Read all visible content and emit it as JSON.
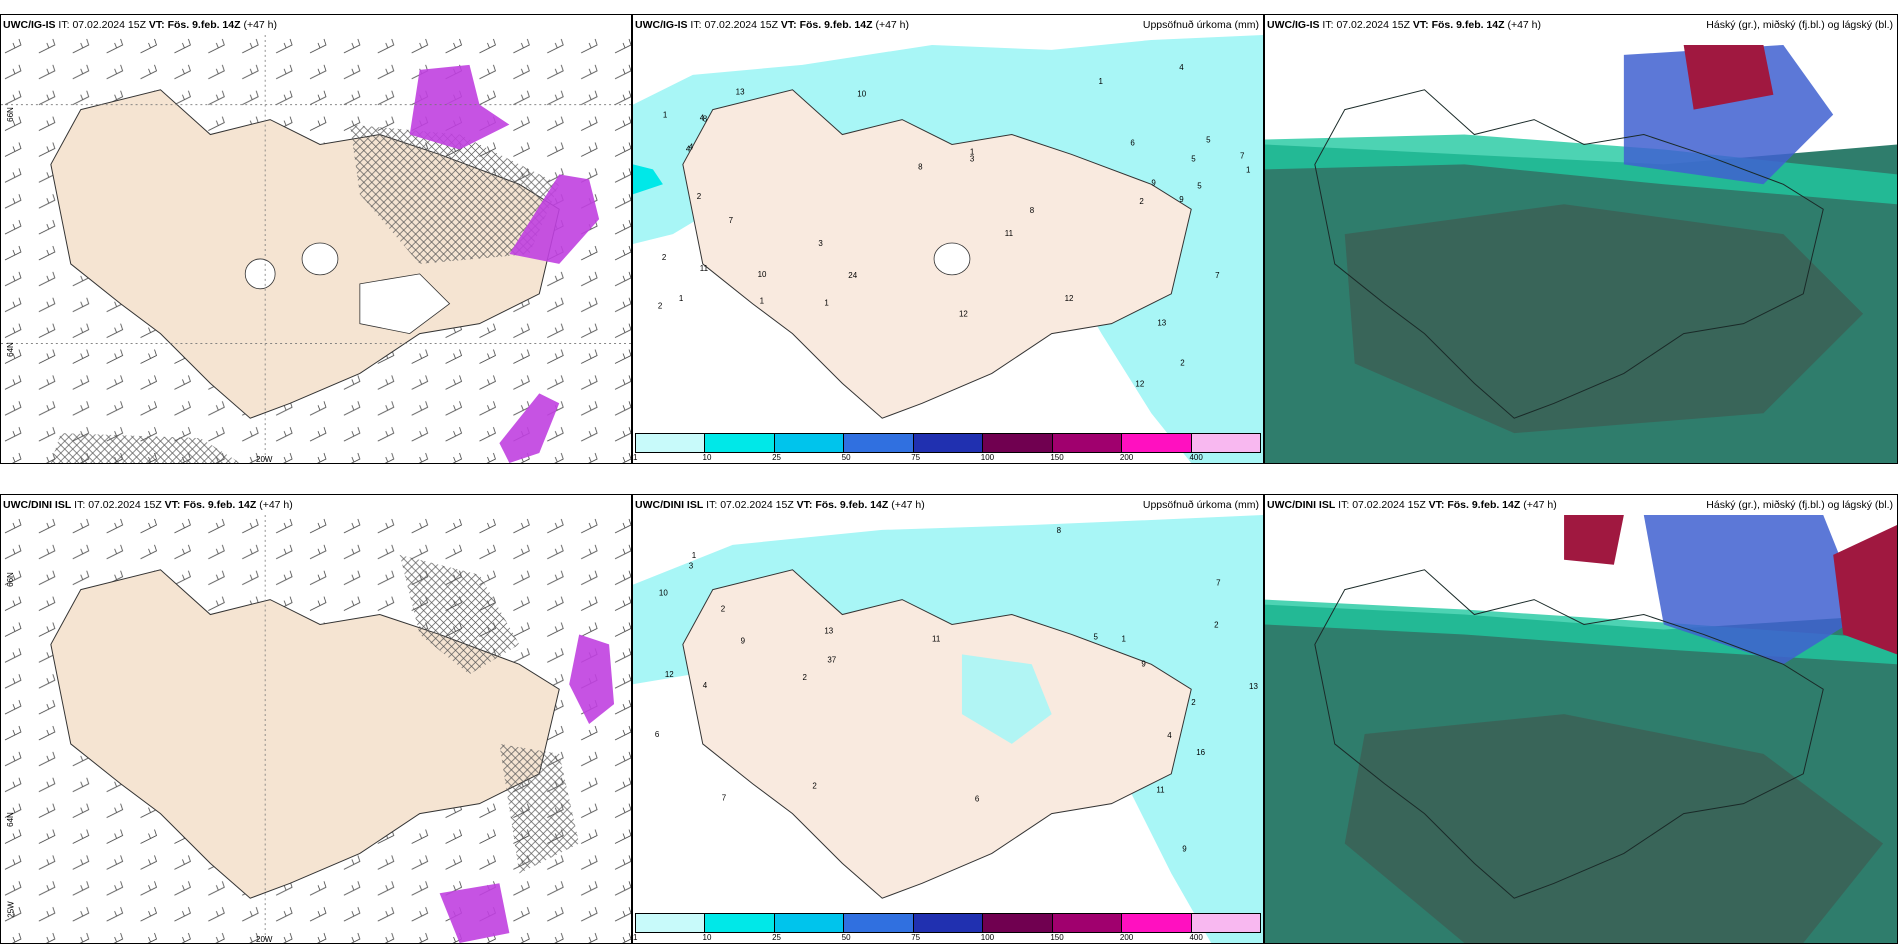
{
  "panels": [
    {
      "model": "UWC/IG-IS",
      "it_prefix": "IT:",
      "it": "07.02.2024 15Z",
      "vt_prefix": "VT:",
      "vt": "Fös. 9.feb. 14Z",
      "lead": "(+47 h)",
      "right": ""
    },
    {
      "model": "UWC/IG-IS",
      "it_prefix": "IT:",
      "it": "07.02.2024 15Z",
      "vt_prefix": "VT:",
      "vt": "Fös. 9.feb. 14Z",
      "lead": "(+47 h)",
      "right": "Uppsöfnuð úrkoma (mm)"
    },
    {
      "model": "UWC/IG-IS",
      "it_prefix": "IT:",
      "it": "07.02.2024 15Z",
      "vt_prefix": "VT:",
      "vt": "Fös. 9.feb. 14Z",
      "lead": "(+47 h)",
      "right": "Háský (gr.), miðský (fj.bl.) og lágský (bl.)"
    },
    {
      "model": "UWC/DINI ISL",
      "it_prefix": "IT:",
      "it": "07.02.2024 15Z",
      "vt_prefix": "VT:",
      "vt": "Fös. 9.feb. 14Z",
      "lead": "(+47 h)",
      "right": ""
    },
    {
      "model": "UWC/DINI ISL",
      "it_prefix": "IT:",
      "it": "07.02.2024 15Z",
      "vt_prefix": "VT:",
      "vt": "Fös. 9.feb. 14Z",
      "lead": "(+47 h)",
      "right": "Uppsöfnuð úrkoma (mm)"
    },
    {
      "model": "UWC/DINI ISL",
      "it_prefix": "IT:",
      "it": "07.02.2024 15Z",
      "vt_prefix": "VT:",
      "vt": "Fös. 9.feb. 14Z",
      "lead": "(+47 h)",
      "right": "Háský (gr.), miðský (fj.bl.) og lágský (bl.)"
    }
  ],
  "colorbar": {
    "labels": [
      "1",
      "10",
      "25",
      "50",
      "75",
      "100",
      "150",
      "200",
      "400"
    ],
    "colors": [
      "#c8fafa",
      "#00e8e8",
      "#00c4ec",
      "#3070e0",
      "#2030b0",
      "#700050",
      "#a0006e",
      "#ff10c0",
      "#f8b8f0"
    ]
  },
  "geo": {
    "lat_66": "66N",
    "lat_64": "64N",
    "lon_20": "20W",
    "lon_25": "25W"
  },
  "precip_labels_top": [
    "1",
    "2",
    "1",
    "2",
    "5",
    "1",
    "4",
    "5",
    "3",
    "4",
    "12",
    "24",
    "8",
    "5",
    "8",
    "1",
    "4",
    "6",
    "7",
    "7",
    "8",
    "11",
    "9",
    "10",
    "13",
    "13",
    "12",
    "10",
    "7",
    "12",
    "4",
    "9",
    "11",
    "1",
    "1",
    "1",
    "2",
    "2",
    "3",
    "2"
  ],
  "precip_labels_bottom": [
    "1",
    "7",
    "1",
    "4",
    "16",
    "37",
    "10",
    "2",
    "2",
    "2",
    "2",
    "2",
    "3",
    "4",
    "6",
    "7",
    "9",
    "8",
    "9",
    "11",
    "13",
    "12",
    "13",
    "5",
    "6",
    "9",
    "11"
  ]
}
